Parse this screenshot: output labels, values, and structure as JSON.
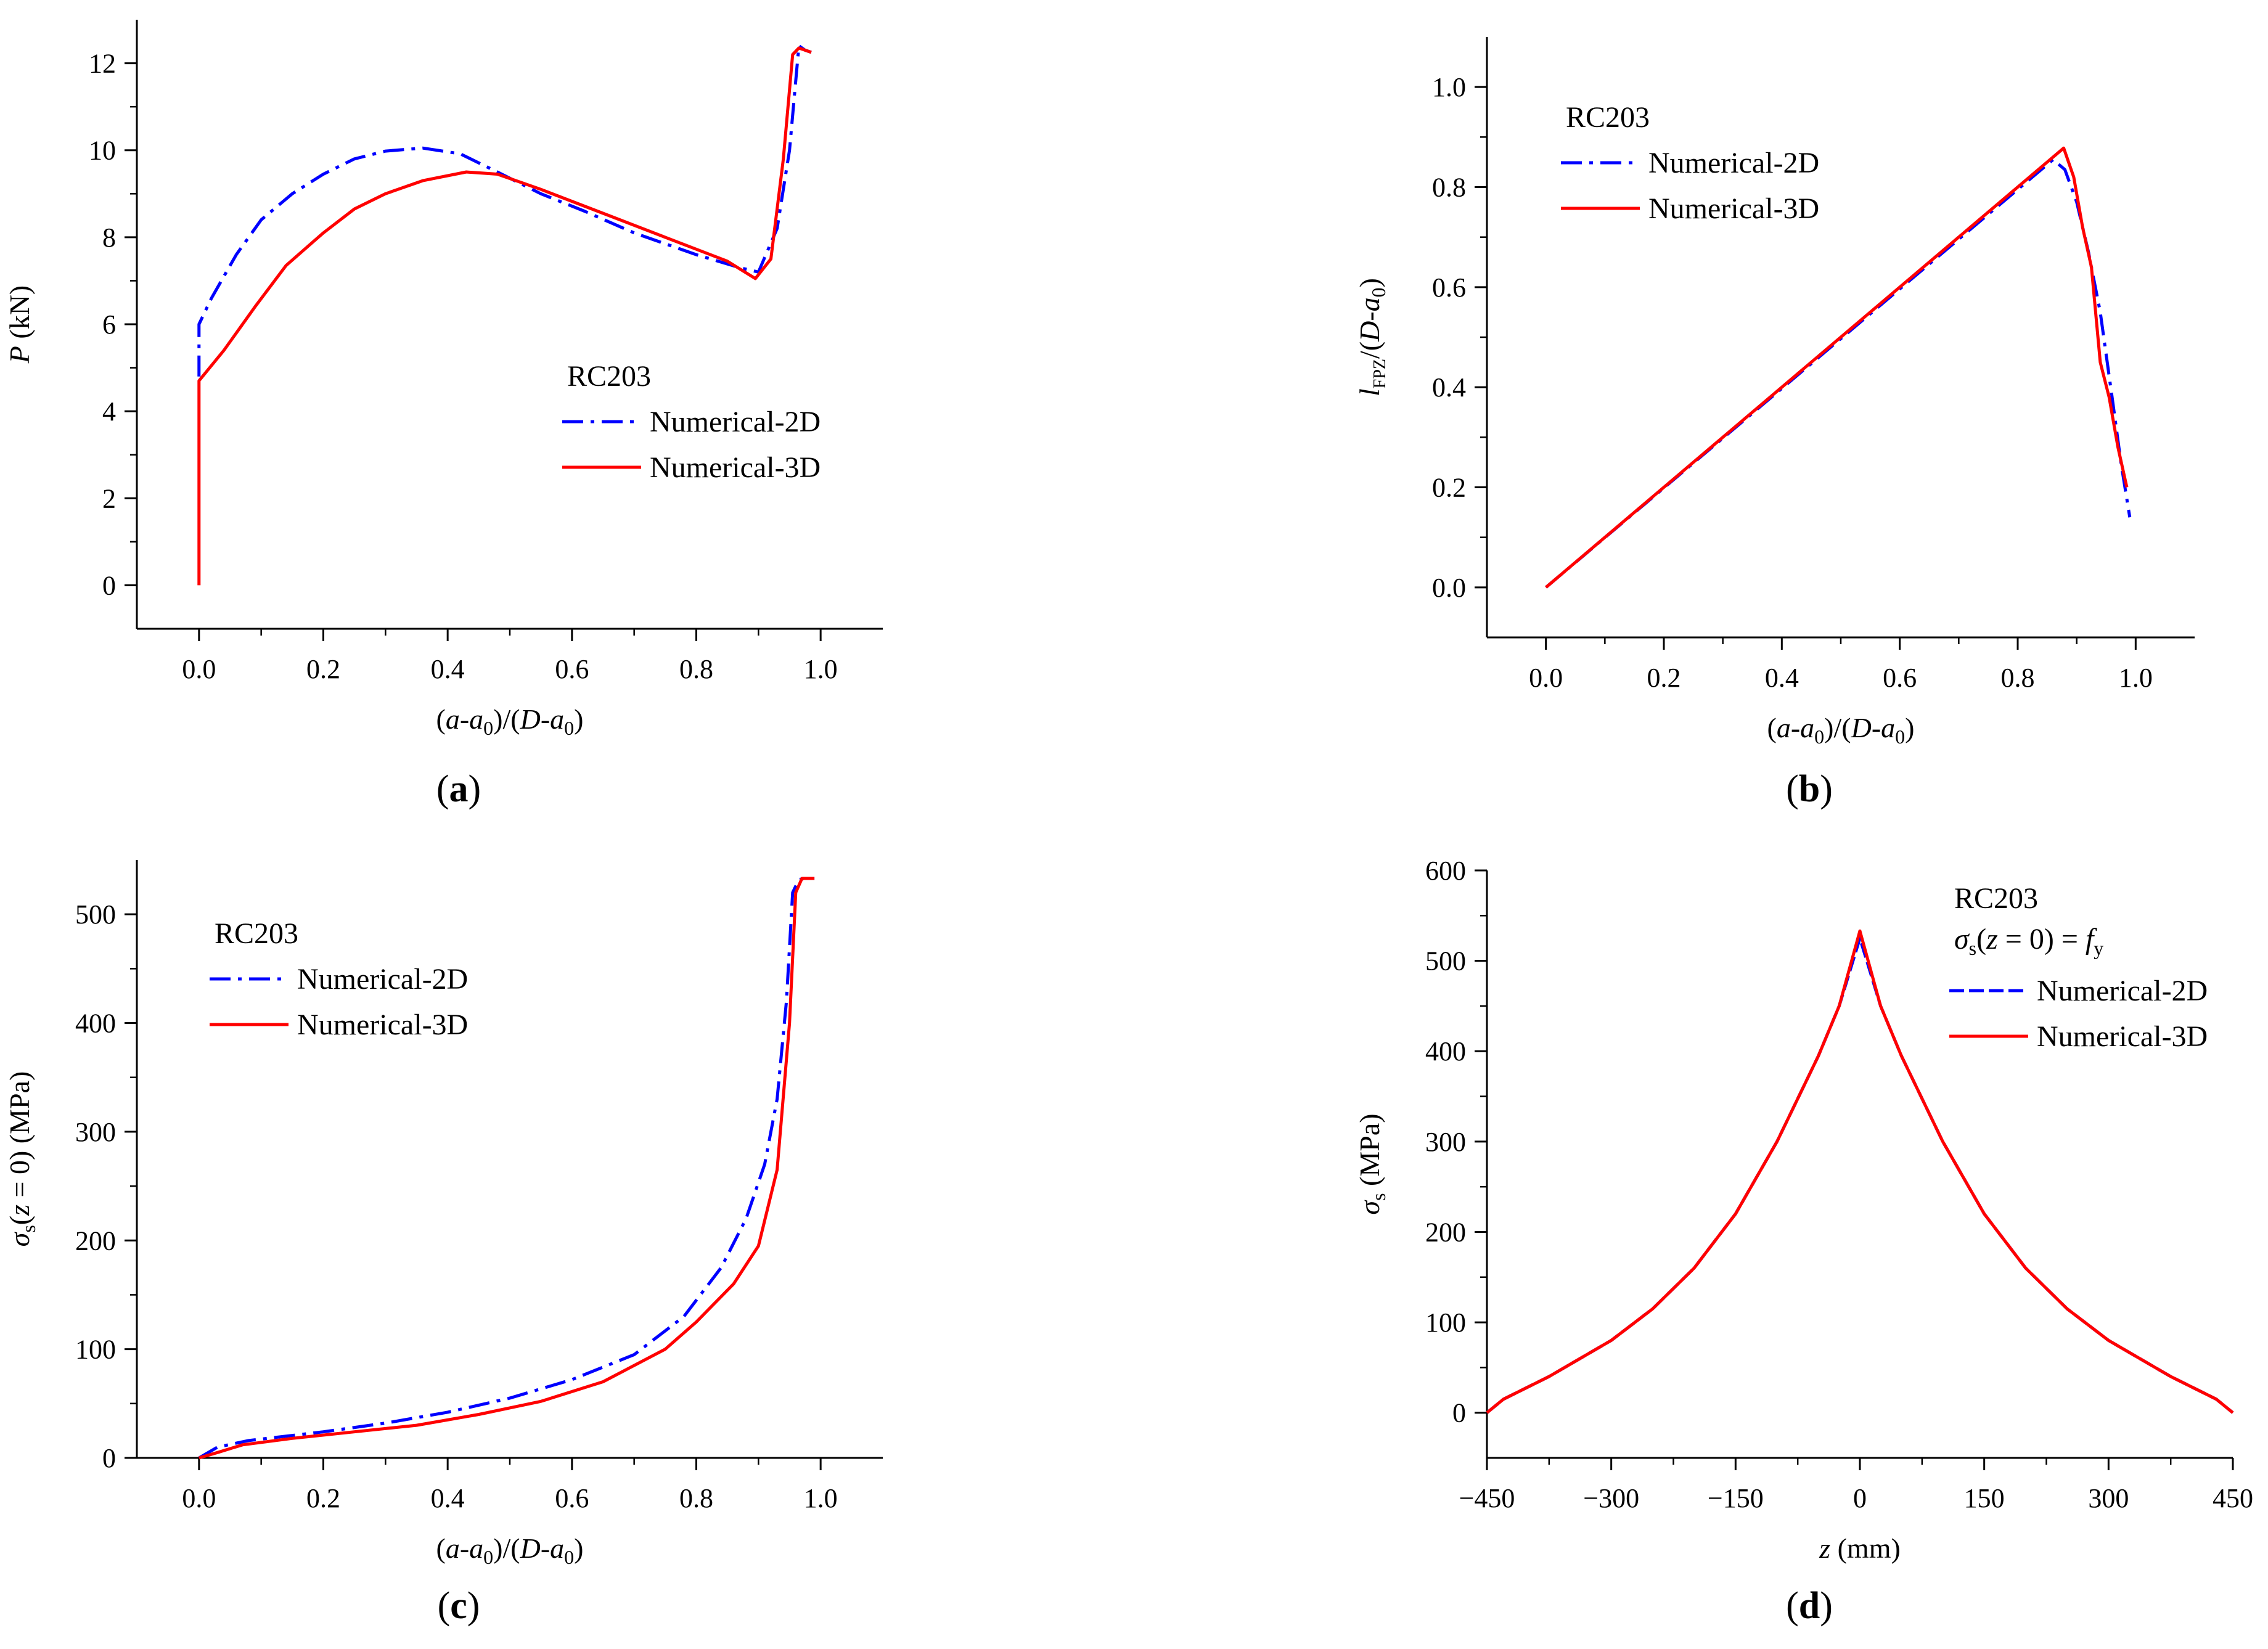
{
  "chart_data": [
    {
      "id": "a",
      "type": "line",
      "caption": "a",
      "xlabel": "(a-a0)/(D-a0)",
      "ylabel": "P (kN)",
      "xlim": [
        -0.1,
        1.1
      ],
      "ylim": [
        -1,
        13
      ],
      "xticks": [
        "0.0",
        "0.2",
        "0.4",
        "0.6",
        "0.8",
        "1.0"
      ],
      "yticks": [
        "0",
        "2",
        "4",
        "6",
        "8",
        "10",
        "12"
      ],
      "legend_title": "RC203",
      "legend_position": "center-right",
      "series": [
        {
          "name": "Numerical-2D",
          "color": "#0000ff",
          "dash": "dashdot",
          "x": [
            0,
            0,
            0.02,
            0.06,
            0.1,
            0.15,
            0.2,
            0.25,
            0.3,
            0.36,
            0.42,
            0.48,
            0.55,
            0.62,
            0.7,
            0.8,
            0.87,
            0.9,
            0.93,
            0.95,
            0.965,
            0.975,
            0.985
          ],
          "y": [
            4.8,
            6.0,
            6.6,
            7.6,
            8.4,
            9.0,
            9.45,
            9.8,
            9.98,
            10.05,
            9.92,
            9.5,
            9.0,
            8.6,
            8.1,
            7.6,
            7.3,
            7.2,
            8.2,
            10.0,
            12.4,
            12.3,
            12.25
          ]
        },
        {
          "name": "Numerical-3D",
          "color": "#ff0000",
          "dash": "solid",
          "x": [
            0,
            0,
            0.04,
            0.09,
            0.14,
            0.2,
            0.25,
            0.3,
            0.36,
            0.43,
            0.48,
            0.55,
            0.65,
            0.75,
            0.85,
            0.895,
            0.92,
            0.94,
            0.955,
            0.965,
            0.975,
            0.985
          ],
          "y": [
            0,
            4.7,
            5.4,
            6.4,
            7.35,
            8.1,
            8.65,
            9.0,
            9.3,
            9.5,
            9.45,
            9.1,
            8.55,
            8.0,
            7.45,
            7.05,
            7.5,
            9.8,
            12.2,
            12.35,
            12.3,
            12.25
          ]
        }
      ]
    },
    {
      "id": "b",
      "type": "line",
      "caption": "b",
      "xlabel": "(a-a0)/(D-a0)",
      "ylabel": "lFPZ/(D-a0)",
      "xlim": [
        -0.1,
        1.1
      ],
      "ylim": [
        -0.1,
        1.1
      ],
      "xticks": [
        "0.0",
        "0.2",
        "0.4",
        "0.6",
        "0.8",
        "1.0"
      ],
      "yticks": [
        "0.0",
        "0.2",
        "0.4",
        "0.6",
        "0.8",
        "1.0"
      ],
      "legend_title": "RC203",
      "legend_position": "top-left",
      "series": [
        {
          "name": "Numerical-2D",
          "color": "#0000ff",
          "dash": "dashdot",
          "x": [
            0,
            0.86,
            0.88,
            0.9,
            0.92,
            0.94,
            0.96,
            0.975,
            0.99
          ],
          "y": [
            0,
            0.855,
            0.835,
            0.77,
            0.67,
            0.55,
            0.38,
            0.25,
            0.14
          ]
        },
        {
          "name": "Numerical-3D",
          "color": "#ff0000",
          "dash": "solid",
          "x": [
            0,
            0.878,
            0.895,
            0.91,
            0.925,
            0.94,
            0.955,
            0.97,
            0.985
          ],
          "y": [
            0,
            0.878,
            0.82,
            0.72,
            0.64,
            0.45,
            0.38,
            0.28,
            0.2
          ]
        }
      ]
    },
    {
      "id": "c",
      "type": "line",
      "caption": "c",
      "xlabel": "(a-a0)/(D-a0)",
      "ylabel": "σs(z=0) (MPa)",
      "xlim": [
        -0.1,
        1.1
      ],
      "ylim": [
        0,
        550
      ],
      "xticks": [
        "0.0",
        "0.2",
        "0.4",
        "0.6",
        "0.8",
        "1.0"
      ],
      "yticks": [
        "0",
        "100",
        "200",
        "300",
        "400",
        "500"
      ],
      "legend_title": "RC203",
      "legend_position": "top-left",
      "series": [
        {
          "name": "Numerical-2D",
          "color": "#0000ff",
          "dash": "dashdot",
          "x": [
            0,
            0.03,
            0.08,
            0.2,
            0.3,
            0.4,
            0.5,
            0.6,
            0.7,
            0.78,
            0.84,
            0.88,
            0.91,
            0.93,
            0.945,
            0.955,
            0.965,
            0.975,
            0.99
          ],
          "y": [
            0,
            10,
            16,
            24,
            32,
            42,
            55,
            72,
            95,
            130,
            175,
            220,
            270,
            330,
            420,
            520,
            532,
            533,
            533
          ]
        },
        {
          "name": "Numerical-3D",
          "color": "#ff0000",
          "dash": "solid",
          "x": [
            0,
            0.03,
            0.07,
            0.15,
            0.25,
            0.35,
            0.45,
            0.55,
            0.65,
            0.75,
            0.8,
            0.86,
            0.9,
            0.93,
            0.95,
            0.96,
            0.97,
            0.99
          ],
          "y": [
            0,
            5,
            12,
            18,
            24,
            30,
            40,
            52,
            70,
            100,
            125,
            160,
            195,
            265,
            400,
            520,
            533,
            533
          ]
        }
      ]
    },
    {
      "id": "d",
      "type": "line",
      "caption": "d",
      "xlabel": "z (mm)",
      "ylabel": "σs (MPa)",
      "xlim": [
        -450,
        450
      ],
      "ylim": [
        -50,
        600
      ],
      "xticks": [
        "−450",
        "−300",
        "−150",
        "0",
        "150",
        "300",
        "450"
      ],
      "yticks": [
        "0",
        "100",
        "200",
        "300",
        "400",
        "500",
        "600"
      ],
      "legend_title": "RC203",
      "legend_subtitle": "σs(z = 0) = fy",
      "legend_position": "top-right",
      "series": [
        {
          "name": "Numerical-2D",
          "color": "#0000ff",
          "dash": "dashed",
          "x": [
            -450,
            -430,
            -375,
            -300,
            -250,
            -200,
            -150,
            -100,
            -50,
            -25,
            0,
            25,
            50,
            100,
            150,
            200,
            250,
            300,
            375,
            430,
            450
          ],
          "y": [
            0,
            15,
            40,
            80,
            115,
            160,
            220,
            300,
            395,
            450,
            525,
            450,
            395,
            300,
            220,
            160,
            115,
            80,
            40,
            15,
            0
          ]
        },
        {
          "name": "Numerical-3D",
          "color": "#ff0000",
          "dash": "solid",
          "x": [
            -450,
            -430,
            -375,
            -300,
            -250,
            -200,
            -150,
            -100,
            -50,
            -25,
            0,
            25,
            50,
            100,
            150,
            200,
            250,
            300,
            375,
            430,
            450
          ],
          "y": [
            0,
            15,
            40,
            80,
            115,
            160,
            220,
            300,
            395,
            450,
            533,
            450,
            395,
            300,
            220,
            160,
            115,
            80,
            40,
            15,
            0
          ]
        }
      ]
    }
  ]
}
